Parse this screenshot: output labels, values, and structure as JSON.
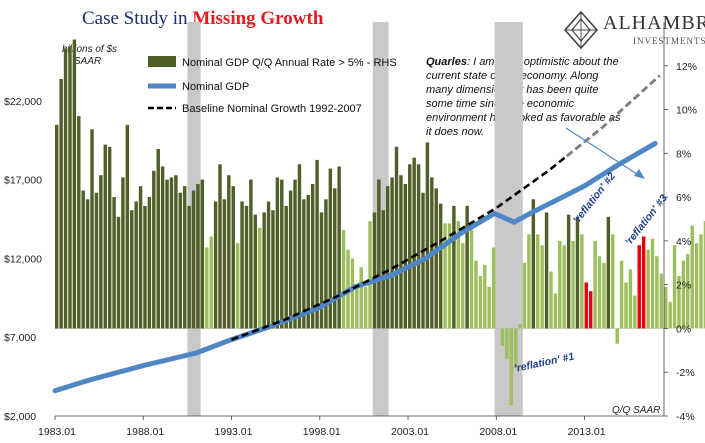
{
  "header": {
    "title_prefix": "Case Study in ",
    "title_highlight": "Missing Growth",
    "logo_name": "ALHAMBRA",
    "logo_sub": "INVESTMENTS"
  },
  "chart_data": {
    "type": "bar+line",
    "title": "Case Study in Missing Growth",
    "left_axis": {
      "unit_label": [
        "billions of $s",
        "SAAR"
      ],
      "range": [
        2000,
        27000
      ],
      "ticks": [
        {
          "v": 2000,
          "label": "$2,000"
        },
        {
          "v": 7000,
          "label": "$7,000"
        },
        {
          "v": 12000,
          "label": "$12,000"
        },
        {
          "v": 17000,
          "label": "$17,000"
        },
        {
          "v": 22000,
          "label": "$22,000"
        }
      ]
    },
    "right_axis": {
      "unit_label": "Q/Q SAAR",
      "range": [
        -4,
        14
      ],
      "ticks": [
        {
          "v": -4,
          "label": "-4%"
        },
        {
          "v": -2,
          "label": "-2%"
        },
        {
          "v": 0,
          "label": "0%"
        },
        {
          "v": 2,
          "label": "2%"
        },
        {
          "v": 4,
          "label": "4%"
        },
        {
          "v": 6,
          "label": "6%"
        },
        {
          "v": 8,
          "label": "8%"
        },
        {
          "v": 10,
          "label": "10%"
        },
        {
          "v": 12,
          "label": "12%"
        }
      ]
    },
    "x_axis": {
      "range": [
        1983.0,
        2017.5
      ],
      "ticks": [
        {
          "v": 1983,
          "label": "1983.01"
        },
        {
          "v": 1988,
          "label": "1988.01"
        },
        {
          "v": 1993,
          "label": "1993.01"
        },
        {
          "v": 1998,
          "label": "1998.01"
        },
        {
          "v": 2003,
          "label": "2003.01"
        },
        {
          "v": 2008,
          "label": "2008.01"
        },
        {
          "v": 2013,
          "label": "2013.01"
        }
      ]
    },
    "legend": [
      {
        "label": "Nominal GDP Q/Q Annual Rate > 5% - RHS",
        "color": "#4f5f27",
        "kind": "bar"
      },
      {
        "label": "Nominal GDP",
        "color": "#4f86c6",
        "kind": "line"
      },
      {
        "label": "Baseline Nominal Growth 1992-2007",
        "color": "#000000",
        "kind": "dashed"
      }
    ],
    "recessions": [
      [
        1990.5,
        1991.25
      ],
      [
        2001.0,
        2001.9
      ],
      [
        2007.9,
        2009.5
      ]
    ],
    "bar_colors": {
      "above_5": "#4f5f27",
      "below_5": "#9dbf5e",
      "highlight": "#e8000b"
    },
    "growth_qq": [
      {
        "start": 1983.0,
        "values": [
          9.3,
          11.4,
          12.8,
          12.9,
          13.2,
          9.7,
          6.3,
          5.9,
          9.1,
          6.2,
          7.0,
          8.4,
          8.3,
          6.0,
          5.1,
          6.9,
          9.3,
          5.4,
          5.8,
          6.5,
          5.6,
          6.0,
          7.2,
          8.2,
          7.4,
          6.8,
          6.9,
          7.0,
          6.2,
          6.5,
          5.6,
          6.3,
          6.6,
          6.8
        ]
      },
      {
        "start": 1991.5,
        "values": [
          3.7,
          4.2,
          5.8,
          7.5,
          5.9,
          7.0,
          6.5,
          3.9,
          5.8,
          5.6,
          6.8,
          5.2,
          4.6,
          5.3,
          5.8,
          5.4,
          6.9,
          6.8,
          5.6,
          6.3,
          6.8,
          7.5,
          5.9,
          6.1,
          6.6,
          7.7,
          5.3,
          5.9,
          7.3,
          6.4,
          7.4,
          4.5,
          3.6,
          3.2,
          2.0,
          2.8,
          1.9,
          4.9,
          5.3,
          6.8,
          5.4,
          6.5,
          6.9,
          8.3,
          7.0,
          6.6,
          7.5,
          7.8,
          7.5,
          6.2,
          8.5,
          6.9,
          6.4,
          5.7,
          4.8,
          4.8,
          5.6,
          4.9,
          3.9,
          5.6,
          4.5,
          3.1,
          2.4,
          2.9,
          1.9,
          3.7
        ]
      },
      {
        "start": 2008.25,
        "values": [
          -0.8,
          -1.4,
          -3.5,
          -1.8,
          0.2,
          3.0,
          4.3,
          5.9
        ]
      },
      {
        "start": 2010.25,
        "values": [
          4.3,
          3.8,
          5.3,
          2.6,
          1.6,
          4.0,
          3.8,
          5.2,
          4.0,
          5.1,
          4.3,
          2.1,
          1.7,
          4.0,
          3.3,
          3.0,
          5.1,
          4.3,
          -0.7,
          3.1,
          2.1,
          2.7,
          1.5,
          3.8,
          4.2,
          3.6,
          4.1,
          3.3,
          2.5,
          1.9,
          1.2,
          3.8,
          2.4,
          3.1,
          3.4,
          4.7,
          3.9,
          4.3,
          4.9,
          5.7
        ]
      }
    ],
    "highlight_quarters": [
      2013.0,
      2013.25,
      2016.0,
      2016.25
    ],
    "nominal_gdp_anchors": [
      [
        1983,
        3600
      ],
      [
        1985,
        4300
      ],
      [
        1988,
        5200
      ],
      [
        1991,
        6000
      ],
      [
        1993,
        6850
      ],
      [
        1995,
        7600
      ],
      [
        1998,
        8900
      ],
      [
        2000,
        10200
      ],
      [
        2002,
        10900
      ],
      [
        2004,
        12000
      ],
      [
        2006,
        13600
      ],
      [
        2007.9,
        14850
      ],
      [
        2009.0,
        14300
      ],
      [
        2010,
        14900
      ],
      [
        2013,
        16600
      ],
      [
        2015,
        18000
      ],
      [
        2017,
        19300
      ]
    ],
    "baseline_anchors": [
      [
        1993,
        6850
      ],
      [
        1996,
        8100
      ],
      [
        1999,
        9600
      ],
      [
        2002,
        11300
      ],
      [
        2005,
        13200
      ],
      [
        2008,
        15200
      ],
      [
        2011,
        17600
      ],
      [
        2014,
        20300
      ],
      [
        2017.25,
        23600
      ]
    ],
    "baseline_projection_from": 2012.0,
    "annotations": {
      "quote_name": "Quarles",
      "quote_text": ": I am fairly optimistic about the current state of the economy. Along many dimensions, it has been quite some time since the economic environment has looked as favorable as it does now.",
      "reflation_1": "'reflation' #1",
      "reflation_2": "'reflation' #2",
      "reflation_3": "'reflation' #3",
      "right_unit": "Q/Q SAAR"
    }
  }
}
